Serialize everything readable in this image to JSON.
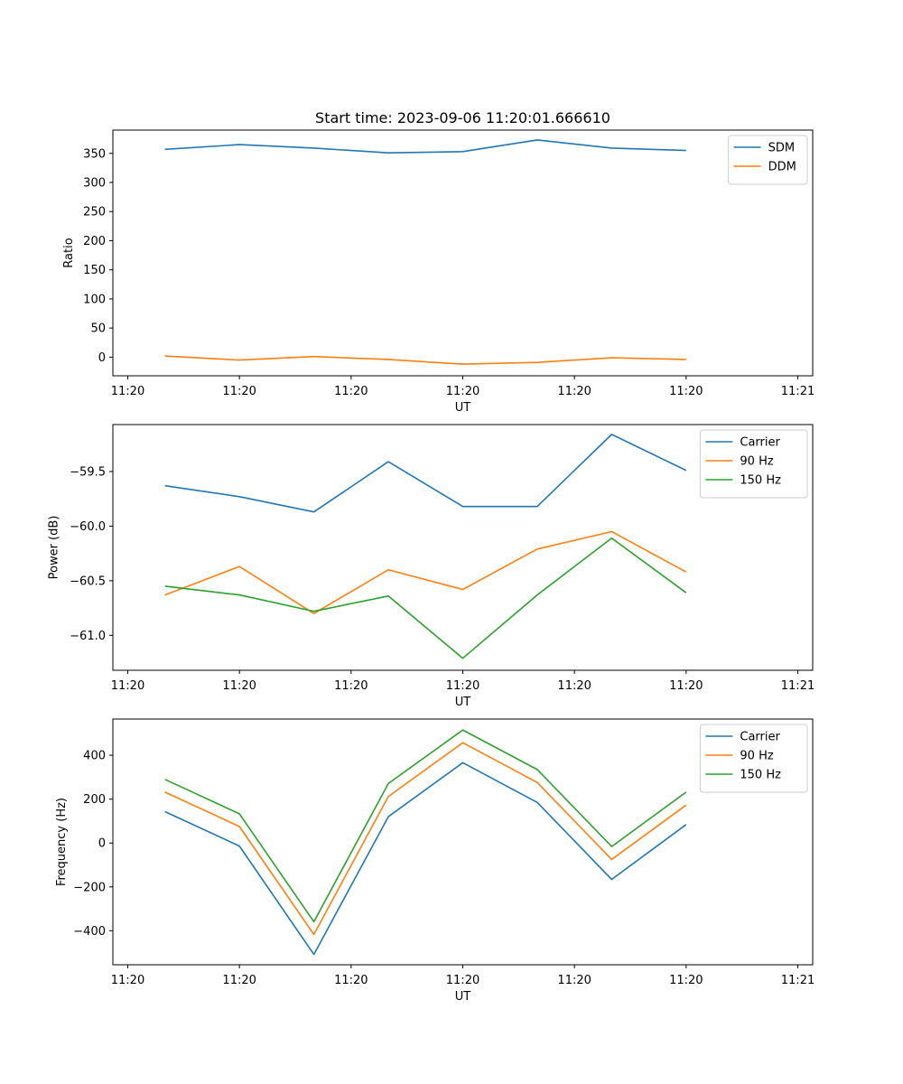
{
  "figure": {
    "title": "Start time: 2023-09-06 11:20:01.666610",
    "colors": {
      "blue": "#1f77b4",
      "orange": "#ff7f0e",
      "green": "#2ca02c"
    }
  },
  "chart_data": [
    {
      "type": "line",
      "title": "Start time: 2023-09-06 11:20:01.666610",
      "xlabel": "UT",
      "ylabel": "Ratio",
      "x": [
        0.5,
        1.5,
        2.5,
        3.5,
        4.5,
        5.5,
        6.5,
        7.5
      ],
      "xlim": [
        -0.2,
        9.2
      ],
      "x_ticks": [
        0,
        1.5,
        3,
        4.5,
        6,
        7.5,
        9
      ],
      "x_tick_labels": [
        "11:20",
        "11:20",
        "11:20",
        "11:20",
        "11:20",
        "11:20",
        "11:21"
      ],
      "ylim": [
        -32,
        390
      ],
      "y_ticks": [
        0,
        50,
        100,
        150,
        200,
        250,
        300,
        350
      ],
      "y_tick_labels": [
        "0",
        "50",
        "100",
        "150",
        "200",
        "250",
        "300",
        "350"
      ],
      "legend_position": "top-right",
      "series": [
        {
          "name": "SDM",
          "color": "#1f77b4",
          "values": [
            357,
            365,
            359,
            351,
            353,
            373,
            359,
            355
          ]
        },
        {
          "name": "DDM",
          "color": "#ff7f0e",
          "values": [
            2,
            -5,
            1,
            -4,
            -12,
            -9,
            -1,
            -4
          ]
        }
      ]
    },
    {
      "type": "line",
      "title": "",
      "xlabel": "UT",
      "ylabel": "Power (dB)",
      "x": [
        0.5,
        1.5,
        2.5,
        3.5,
        4.5,
        5.5,
        6.5,
        7.5
      ],
      "xlim": [
        -0.2,
        9.2
      ],
      "x_ticks": [
        0,
        1.5,
        3,
        4.5,
        6,
        7.5,
        9
      ],
      "x_tick_labels": [
        "11:20",
        "11:20",
        "11:20",
        "11:20",
        "11:20",
        "11:20",
        "11:21"
      ],
      "ylim": [
        -61.32,
        -59.07
      ],
      "y_ticks": [
        -61.0,
        -60.5,
        -60.0,
        -59.5
      ],
      "y_tick_labels": [
        "−61.0",
        "−60.5",
        "−60.0",
        "−59.5"
      ],
      "legend_position": "top-right",
      "series": [
        {
          "name": "Carrier",
          "color": "#1f77b4",
          "values": [
            -59.63,
            -59.73,
            -59.87,
            -59.41,
            -59.82,
            -59.82,
            -59.16,
            -59.49
          ]
        },
        {
          "name": "90 Hz",
          "color": "#ff7f0e",
          "values": [
            -60.63,
            -60.37,
            -60.8,
            -60.4,
            -60.58,
            -60.21,
            -60.05,
            -60.42
          ]
        },
        {
          "name": "150 Hz",
          "color": "#2ca02c",
          "values": [
            -60.55,
            -60.63,
            -60.78,
            -60.64,
            -61.21,
            -60.63,
            -60.11,
            -60.61
          ]
        }
      ]
    },
    {
      "type": "line",
      "title": "",
      "xlabel": "UT",
      "ylabel": "Frequency (Hz)",
      "x": [
        0.5,
        1.5,
        2.5,
        3.5,
        4.5,
        5.5,
        6.5,
        7.5
      ],
      "xlim": [
        -0.2,
        9.2
      ],
      "x_ticks": [
        0,
        1.5,
        3,
        4.5,
        6,
        7.5,
        9
      ],
      "x_tick_labels": [
        "11:20",
        "11:20",
        "11:20",
        "11:20",
        "11:20",
        "11:20",
        "11:21"
      ],
      "ylim": [
        -555,
        565
      ],
      "y_ticks": [
        -400,
        -200,
        0,
        200,
        400
      ],
      "y_tick_labels": [
        "−400",
        "−200",
        "0",
        "200",
        "400"
      ],
      "legend_position": "top-right",
      "series": [
        {
          "name": "Carrier",
          "color": "#1f77b4",
          "values": [
            143,
            -14,
            -508,
            120,
            366,
            185,
            -166,
            84
          ]
        },
        {
          "name": "90 Hz",
          "color": "#ff7f0e",
          "values": [
            232,
            75,
            -417,
            212,
            457,
            276,
            -75,
            173
          ]
        },
        {
          "name": "150 Hz",
          "color": "#2ca02c",
          "values": [
            290,
            133,
            -359,
            271,
            515,
            335,
            -16,
            232
          ]
        }
      ]
    }
  ]
}
